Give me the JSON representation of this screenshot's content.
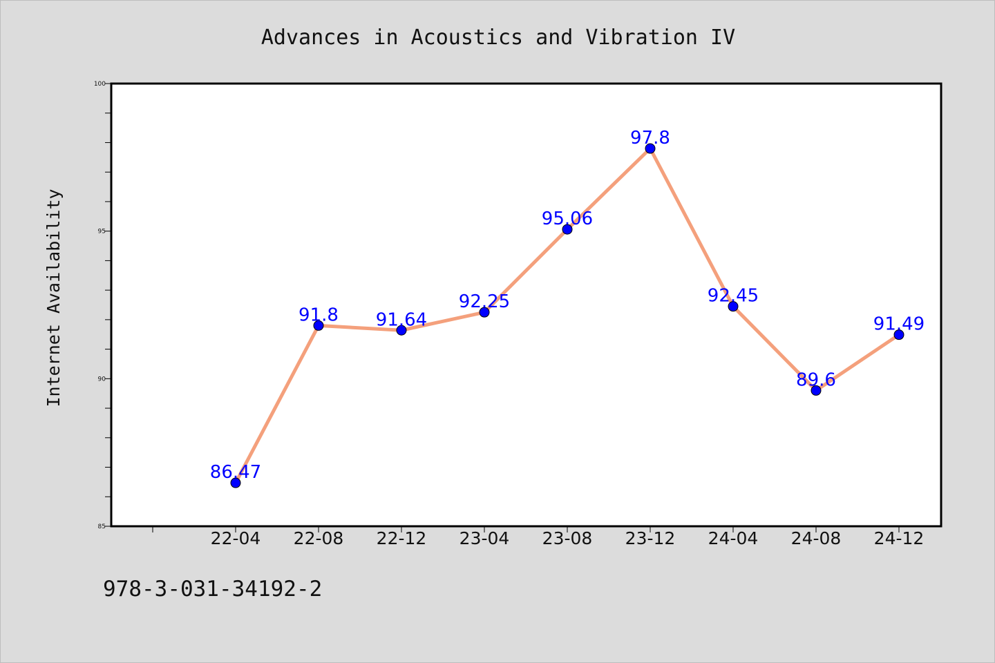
{
  "chart_data": {
    "type": "line",
    "title": "Advances in Acoustics and Vibration IV",
    "xlabel": "",
    "ylabel": "Internet Availability",
    "categories": [
      "22-04",
      "22-08",
      "22-12",
      "23-04",
      "23-08",
      "23-12",
      "24-04",
      "24-08",
      "24-12"
    ],
    "values": [
      86.47,
      91.8,
      91.64,
      92.25,
      95.06,
      97.8,
      92.45,
      89.6,
      91.49
    ],
    "value_labels": [
      "86.47",
      "91.8",
      "91.64",
      "92.25",
      "95.06",
      "97.8",
      "92.45",
      "89.6",
      "91.49"
    ],
    "ylim": [
      85,
      100
    ],
    "yticks": [
      85,
      90,
      95,
      100
    ],
    "grid": false,
    "legend": "none",
    "colors": {
      "line": "#f4a07c",
      "marker": "#0000ff",
      "data_label": "#0000ff",
      "plot_background": "#ffffff",
      "page_background": "#dcdcdc"
    }
  },
  "footnote": "978-3-031-34192-2"
}
